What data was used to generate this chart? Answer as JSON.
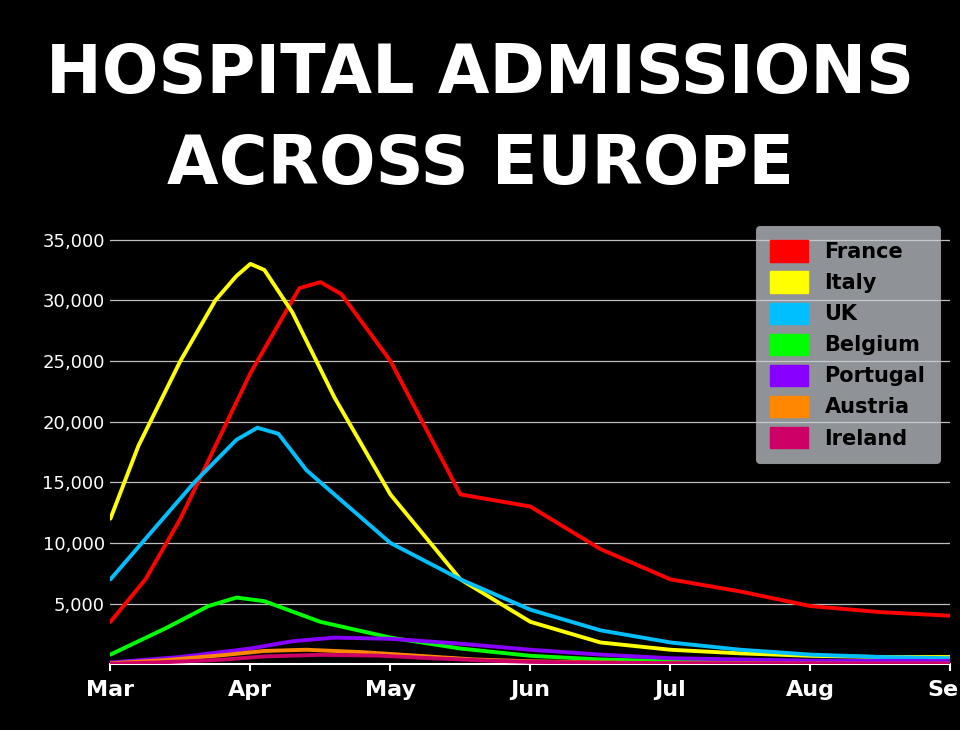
{
  "title_line1": "HOSPITAL ADMISSIONS",
  "title_line2": "ACROSS EUROPE",
  "title_bg_color": "#000000",
  "title_text_color": "#ffffff",
  "x_labels": [
    "Mar",
    "Apr",
    "May",
    "Jun",
    "Jul",
    "Aug",
    "Sep"
  ],
  "ylim": [
    0,
    37000
  ],
  "yticks": [
    5000,
    10000,
    15000,
    20000,
    25000,
    30000,
    35000
  ],
  "ytick_labels": [
    "5,000",
    "10,000",
    "15,000",
    "20,000",
    "25,000",
    "30,000",
    "35,000"
  ],
  "series": {
    "France": {
      "color": "#ff0000",
      "x": [
        0,
        0.25,
        0.5,
        0.75,
        1.0,
        1.2,
        1.35,
        1.5,
        1.65,
        2.0,
        2.5,
        3.0,
        3.5,
        4.0,
        4.5,
        5.0,
        5.5,
        6.0
      ],
      "y": [
        3500,
        7000,
        12000,
        18000,
        24000,
        28000,
        31000,
        31500,
        30500,
        25000,
        14000,
        13000,
        9500,
        7000,
        6000,
        4800,
        4300,
        4000
      ]
    },
    "Italy": {
      "color": "#ffff00",
      "x": [
        0,
        0.2,
        0.5,
        0.75,
        0.9,
        1.0,
        1.1,
        1.3,
        1.6,
        2.0,
        2.5,
        3.0,
        3.5,
        4.0,
        4.5,
        5.0,
        5.5,
        6.0
      ],
      "y": [
        12000,
        18000,
        25000,
        30000,
        32000,
        33000,
        32500,
        29000,
        22000,
        14000,
        7000,
        3500,
        1800,
        1200,
        900,
        700,
        600,
        600
      ]
    },
    "UK": {
      "color": "#00bfff",
      "x": [
        0,
        0.3,
        0.6,
        0.9,
        1.05,
        1.2,
        1.4,
        1.7,
        2.0,
        2.5,
        3.0,
        3.5,
        4.0,
        4.5,
        5.0,
        5.5,
        6.0
      ],
      "y": [
        7000,
        11000,
        15000,
        18500,
        19500,
        19000,
        16000,
        13000,
        10000,
        7000,
        4500,
        2800,
        1800,
        1200,
        800,
        600,
        500
      ]
    },
    "Belgium": {
      "color": "#00ff00",
      "x": [
        0,
        0.4,
        0.7,
        0.9,
        1.1,
        1.5,
        2.0,
        2.5,
        3.0,
        3.5,
        4.0,
        4.5,
        5.0,
        5.5,
        6.0
      ],
      "y": [
        800,
        3000,
        4800,
        5500,
        5200,
        3500,
        2200,
        1300,
        700,
        400,
        250,
        180,
        130,
        100,
        100
      ]
    },
    "Portugal": {
      "color": "#8800ff",
      "x": [
        0,
        0.5,
        1.0,
        1.3,
        1.6,
        2.0,
        2.5,
        3.0,
        3.5,
        4.0,
        4.5,
        5.0,
        5.5,
        6.0
      ],
      "y": [
        150,
        600,
        1300,
        1900,
        2200,
        2100,
        1700,
        1200,
        800,
        500,
        400,
        300,
        280,
        280
      ]
    },
    "Austria": {
      "color": "#ff8800",
      "x": [
        0,
        0.4,
        0.8,
        1.1,
        1.4,
        1.8,
        2.2,
        2.6,
        3.0,
        3.5,
        4.0,
        4.5,
        5.0,
        5.5,
        6.0
      ],
      "y": [
        80,
        350,
        750,
        1100,
        1200,
        1000,
        700,
        400,
        250,
        150,
        100,
        80,
        60,
        50,
        50
      ]
    },
    "Ireland": {
      "color": "#cc0066",
      "x": [
        0,
        0.4,
        0.8,
        1.1,
        1.5,
        1.9,
        2.3,
        2.7,
        3.0,
        3.5,
        4.0,
        4.5,
        5.0,
        5.5,
        6.0
      ],
      "y": [
        40,
        180,
        380,
        650,
        780,
        720,
        500,
        300,
        200,
        130,
        90,
        70,
        60,
        55,
        55
      ]
    }
  },
  "legend_order": [
    "France",
    "Italy",
    "UK",
    "Belgium",
    "Portugal",
    "Austria",
    "Ireland"
  ],
  "legend_colors": {
    "France": "#ff0000",
    "Italy": "#ffff00",
    "UK": "#00bfff",
    "Belgium": "#00ff00",
    "Portugal": "#8800ff",
    "Austria": "#ff8800",
    "Ireland": "#cc0066"
  }
}
